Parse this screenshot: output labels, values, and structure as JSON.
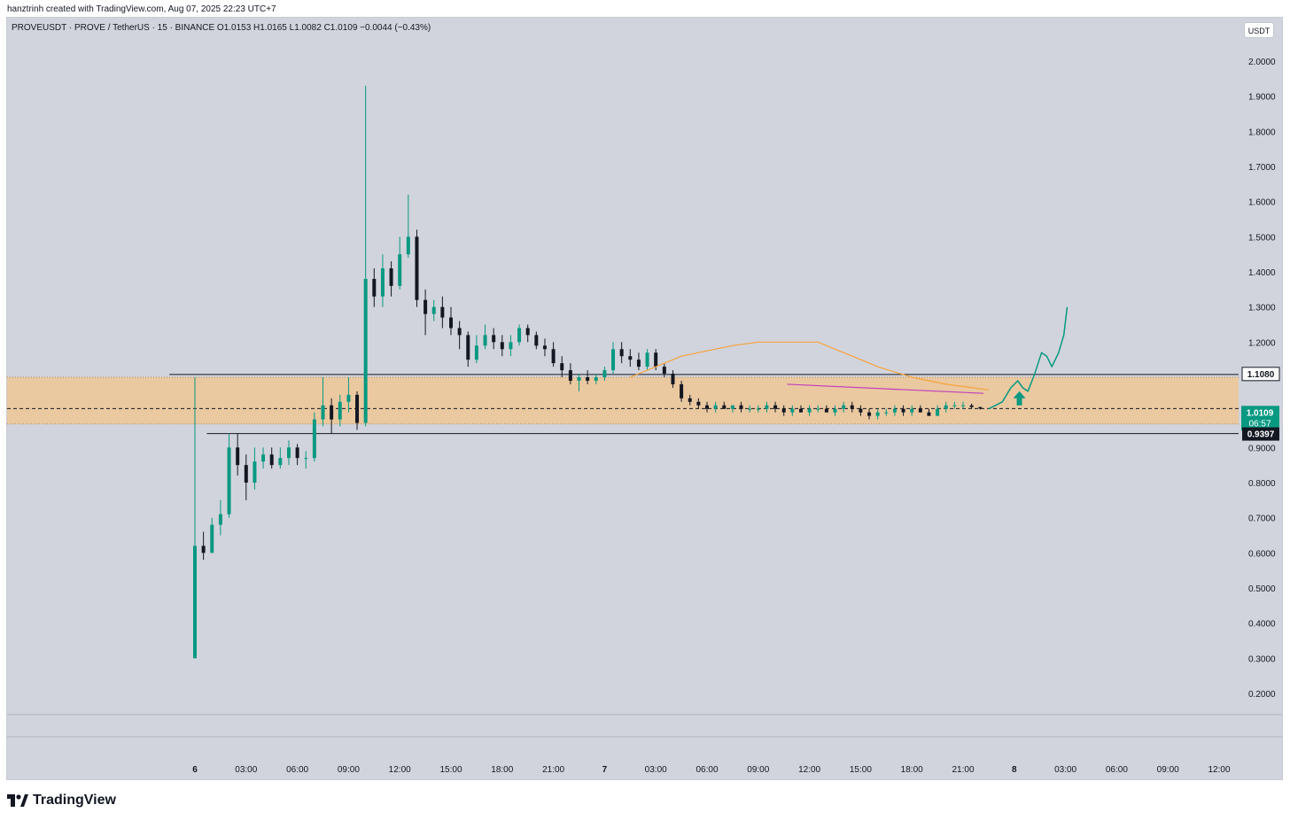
{
  "header": {
    "credit": "hanztrinh created with TradingView.com, Aug 07, 2025 22:23 UTC+7"
  },
  "legend": {
    "text": "PROVEUSDT · PROVE / TetherUS · 15 · BINANCE  O1.0153  H1.0165  L1.0082  C1.0109  −0.0044 (−0.43%)"
  },
  "currency_button": {
    "label": "USDT"
  },
  "footer": {
    "logo_text": "TradingView"
  },
  "colors": {
    "up": "#089981",
    "down": "#131722",
    "zone": "#f2c48c",
    "ma": "#f7a23b",
    "trendline": "#c13fbd",
    "projection": "#089981"
  },
  "chart_data": {
    "type": "candlestick",
    "symbol": "PROVEUSDT",
    "interval": "15",
    "exchange": "BINANCE",
    "ohlc_last": {
      "open": 1.0153,
      "high": 1.0165,
      "low": 1.0082,
      "close": 1.0109,
      "change": -0.0044,
      "change_pct": -0.43
    },
    "y_ticks": [
      "2.0000",
      "1.9000",
      "1.8000",
      "1.7000",
      "1.6000",
      "1.5000",
      "1.4000",
      "1.3000",
      "1.2000",
      "0.9000",
      "0.8000",
      "0.7000",
      "0.6000",
      "0.5000",
      "0.4000",
      "0.3000",
      "0.2000"
    ],
    "ylim": [
      0.135,
      2.125
    ],
    "x_ticks": [
      {
        "label": "6",
        "t": 0,
        "bold": true
      },
      {
        "label": "03:00",
        "t": 3
      },
      {
        "label": "06:00",
        "t": 6
      },
      {
        "label": "09:00",
        "t": 9
      },
      {
        "label": "12:00",
        "t": 12
      },
      {
        "label": "15:00",
        "t": 15
      },
      {
        "label": "18:00",
        "t": 18
      },
      {
        "label": "21:00",
        "t": 21
      },
      {
        "label": "7",
        "t": 24,
        "bold": true
      },
      {
        "label": "03:00",
        "t": 27
      },
      {
        "label": "06:00",
        "t": 30
      },
      {
        "label": "09:00",
        "t": 33
      },
      {
        "label": "12:00",
        "t": 36
      },
      {
        "label": "15:00",
        "t": 39
      },
      {
        "label": "18:00",
        "t": 42
      },
      {
        "label": "21:00",
        "t": 45
      },
      {
        "label": "8",
        "t": 48,
        "bold": true
      },
      {
        "label": "03:00",
        "t": 51
      },
      {
        "label": "06:00",
        "t": 54
      },
      {
        "label": "09:00",
        "t": 57
      },
      {
        "label": "12:00",
        "t": 60
      }
    ],
    "xlim_hours": [
      -11,
      64.5
    ],
    "price_labels": [
      {
        "value": 1.108,
        "text": "1.1080",
        "style": "black-outline"
      },
      {
        "value": 1.0109,
        "text": "1.0109",
        "sub": "06:57",
        "style": "green"
      },
      {
        "value": 0.9397,
        "text": "0.9397",
        "style": "black"
      }
    ],
    "zone": {
      "from": 0.967,
      "to": 1.1
    },
    "horizontal_lines": [
      {
        "value": 1.108,
        "t_start": -1.5
      },
      {
        "value": 0.9397,
        "t_start": 0.7
      }
    ],
    "current_price_line": 1.0109,
    "moving_average": [
      [
        25.5,
        1.1
      ],
      [
        27,
        1.13
      ],
      [
        28.5,
        1.16
      ],
      [
        30,
        1.175
      ],
      [
        31.5,
        1.19
      ],
      [
        33,
        1.2
      ],
      [
        35,
        1.2
      ],
      [
        36.5,
        1.2
      ],
      [
        38,
        1.17
      ],
      [
        40,
        1.13
      ],
      [
        42,
        1.1
      ],
      [
        44,
        1.08
      ],
      [
        46.5,
        1.064
      ]
    ],
    "trendline": [
      [
        34.7,
        1.08
      ],
      [
        46.2,
        1.054
      ]
    ],
    "projection": [
      [
        46.5,
        1.01
      ],
      [
        47.3,
        1.03
      ],
      [
        47.8,
        1.07
      ],
      [
        48.2,
        1.09
      ],
      [
        48.5,
        1.07
      ],
      [
        48.8,
        1.06
      ],
      [
        49.2,
        1.11
      ],
      [
        49.6,
        1.17
      ],
      [
        49.9,
        1.16
      ],
      [
        50.2,
        1.13
      ],
      [
        50.6,
        1.17
      ],
      [
        50.9,
        1.22
      ],
      [
        51.1,
        1.3
      ]
    ],
    "arrow": {
      "t": 48.3,
      "value": 1.03
    },
    "ohlc_hourly": [
      [
        0,
        0.3,
        1.1,
        0.3,
        0.62
      ],
      [
        0.5,
        0.62,
        0.66,
        0.58,
        0.6
      ],
      [
        1,
        0.6,
        0.7,
        0.6,
        0.68
      ],
      [
        1.5,
        0.68,
        0.75,
        0.65,
        0.71
      ],
      [
        2,
        0.71,
        0.94,
        0.7,
        0.9
      ],
      [
        2.5,
        0.9,
        0.94,
        0.82,
        0.85
      ],
      [
        3,
        0.85,
        0.88,
        0.75,
        0.8
      ],
      [
        3.5,
        0.8,
        0.9,
        0.78,
        0.86
      ],
      [
        4,
        0.86,
        0.9,
        0.84,
        0.88
      ],
      [
        4.5,
        0.88,
        0.9,
        0.84,
        0.85
      ],
      [
        5,
        0.85,
        0.9,
        0.84,
        0.87
      ],
      [
        5.5,
        0.87,
        0.92,
        0.85,
        0.9
      ],
      [
        6,
        0.9,
        0.91,
        0.85,
        0.87
      ],
      [
        6.5,
        0.87,
        0.89,
        0.84,
        0.87
      ],
      [
        7,
        0.87,
        1.0,
        0.86,
        0.98
      ],
      [
        7.5,
        0.98,
        1.1,
        0.96,
        1.02
      ],
      [
        8,
        1.02,
        1.04,
        0.94,
        0.98
      ],
      [
        8.5,
        0.98,
        1.05,
        0.96,
        1.03
      ],
      [
        9,
        1.03,
        1.1,
        1.0,
        1.05
      ],
      [
        9.5,
        1.05,
        1.06,
        0.95,
        0.97
      ],
      [
        10,
        0.97,
        1.93,
        0.96,
        1.38
      ],
      [
        10.5,
        1.38,
        1.41,
        1.3,
        1.33
      ],
      [
        11,
        1.33,
        1.45,
        1.3,
        1.41
      ],
      [
        11.5,
        1.41,
        1.43,
        1.33,
        1.36
      ],
      [
        12,
        1.36,
        1.5,
        1.35,
        1.45
      ],
      [
        12.5,
        1.45,
        1.62,
        1.44,
        1.5
      ],
      [
        13,
        1.5,
        1.52,
        1.3,
        1.32
      ],
      [
        13.5,
        1.32,
        1.35,
        1.22,
        1.28
      ],
      [
        14,
        1.28,
        1.32,
        1.26,
        1.3
      ],
      [
        14.5,
        1.3,
        1.33,
        1.24,
        1.27
      ],
      [
        15,
        1.27,
        1.3,
        1.22,
        1.24
      ],
      [
        15.5,
        1.24,
        1.26,
        1.18,
        1.22
      ],
      [
        16,
        1.22,
        1.23,
        1.13,
        1.15
      ],
      [
        16.5,
        1.15,
        1.22,
        1.14,
        1.19
      ],
      [
        17,
        1.19,
        1.25,
        1.18,
        1.22
      ],
      [
        17.5,
        1.22,
        1.24,
        1.18,
        1.2
      ],
      [
        18,
        1.2,
        1.22,
        1.16,
        1.18
      ],
      [
        18.5,
        1.18,
        1.22,
        1.16,
        1.2
      ],
      [
        19,
        1.2,
        1.25,
        1.19,
        1.24
      ],
      [
        19.5,
        1.24,
        1.25,
        1.2,
        1.22
      ],
      [
        20,
        1.22,
        1.23,
        1.18,
        1.19
      ],
      [
        20.5,
        1.19,
        1.21,
        1.16,
        1.18
      ],
      [
        21,
        1.18,
        1.2,
        1.13,
        1.14
      ],
      [
        21.5,
        1.14,
        1.16,
        1.1,
        1.12
      ],
      [
        22,
        1.12,
        1.14,
        1.08,
        1.09
      ],
      [
        22.5,
        1.09,
        1.11,
        1.06,
        1.1
      ],
      [
        23,
        1.1,
        1.12,
        1.08,
        1.09
      ],
      [
        23.5,
        1.09,
        1.11,
        1.08,
        1.1
      ],
      [
        24,
        1.1,
        1.13,
        1.09,
        1.12
      ],
      [
        24.5,
        1.12,
        1.2,
        1.11,
        1.18
      ],
      [
        25,
        1.18,
        1.2,
        1.14,
        1.16
      ],
      [
        25.5,
        1.16,
        1.18,
        1.13,
        1.15
      ],
      [
        26,
        1.15,
        1.17,
        1.12,
        1.13
      ],
      [
        26.5,
        1.13,
        1.18,
        1.12,
        1.17
      ],
      [
        27,
        1.17,
        1.18,
        1.12,
        1.13
      ],
      [
        27.5,
        1.13,
        1.14,
        1.1,
        1.11
      ],
      [
        28,
        1.11,
        1.12,
        1.07,
        1.08
      ],
      [
        28.5,
        1.08,
        1.09,
        1.03,
        1.04
      ],
      [
        29,
        1.04,
        1.05,
        1.02,
        1.03
      ],
      [
        29.5,
        1.03,
        1.04,
        1.01,
        1.02
      ],
      [
        30,
        1.02,
        1.03,
        1.0,
        1.01
      ],
      [
        30.5,
        1.01,
        1.03,
        1.0,
        1.02
      ],
      [
        31,
        1.02,
        1.03,
        1.01,
        1.01
      ],
      [
        31.5,
        1.01,
        1.02,
        1.0,
        1.02
      ],
      [
        32,
        1.02,
        1.03,
        1.0,
        1.01
      ],
      [
        32.5,
        1.01,
        1.02,
        1.0,
        1.01
      ],
      [
        33,
        1.01,
        1.02,
        1.0,
        1.01
      ],
      [
        33.5,
        1.01,
        1.03,
        1.0,
        1.02
      ],
      [
        34,
        1.02,
        1.03,
        1.0,
        1.01
      ],
      [
        34.5,
        1.01,
        1.02,
        0.99,
        1.0
      ],
      [
        35,
        1.0,
        1.02,
        0.99,
        1.01
      ],
      [
        35.5,
        1.01,
        1.02,
        1.0,
        1.0
      ],
      [
        36,
        1.0,
        1.02,
        0.99,
        1.01
      ],
      [
        36.5,
        1.01,
        1.02,
        1.0,
        1.01
      ],
      [
        37,
        1.01,
        1.02,
        1.0,
        1.0
      ],
      [
        37.5,
        1.0,
        1.02,
        0.99,
        1.01
      ],
      [
        38,
        1.01,
        1.03,
        1.0,
        1.02
      ],
      [
        38.5,
        1.02,
        1.03,
        1.0,
        1.01
      ],
      [
        39,
        1.01,
        1.02,
        0.99,
        1.0
      ],
      [
        39.5,
        1.0,
        1.01,
        0.98,
        0.99
      ],
      [
        40,
        0.99,
        1.01,
        0.98,
        1.0
      ],
      [
        40.5,
        1.0,
        1.01,
        0.99,
        1.0
      ],
      [
        41,
        1.0,
        1.02,
        0.99,
        1.01
      ],
      [
        41.5,
        1.01,
        1.02,
        0.99,
        1.0
      ],
      [
        42,
        1.0,
        1.02,
        0.99,
        1.01
      ],
      [
        42.5,
        1.01,
        1.02,
        1.0,
        1.0
      ],
      [
        43,
        1.0,
        1.01,
        0.99,
        0.99
      ],
      [
        43.5,
        0.99,
        1.02,
        0.99,
        1.01
      ],
      [
        44,
        1.01,
        1.03,
        1.0,
        1.02
      ],
      [
        44.5,
        1.02,
        1.03,
        1.01,
        1.02
      ],
      [
        45,
        1.02,
        1.03,
        1.01,
        1.02
      ],
      [
        45.5,
        1.02,
        1.025,
        1.01,
        1.015
      ],
      [
        46,
        1.015,
        1.016,
        1.008,
        1.0109
      ]
    ]
  }
}
